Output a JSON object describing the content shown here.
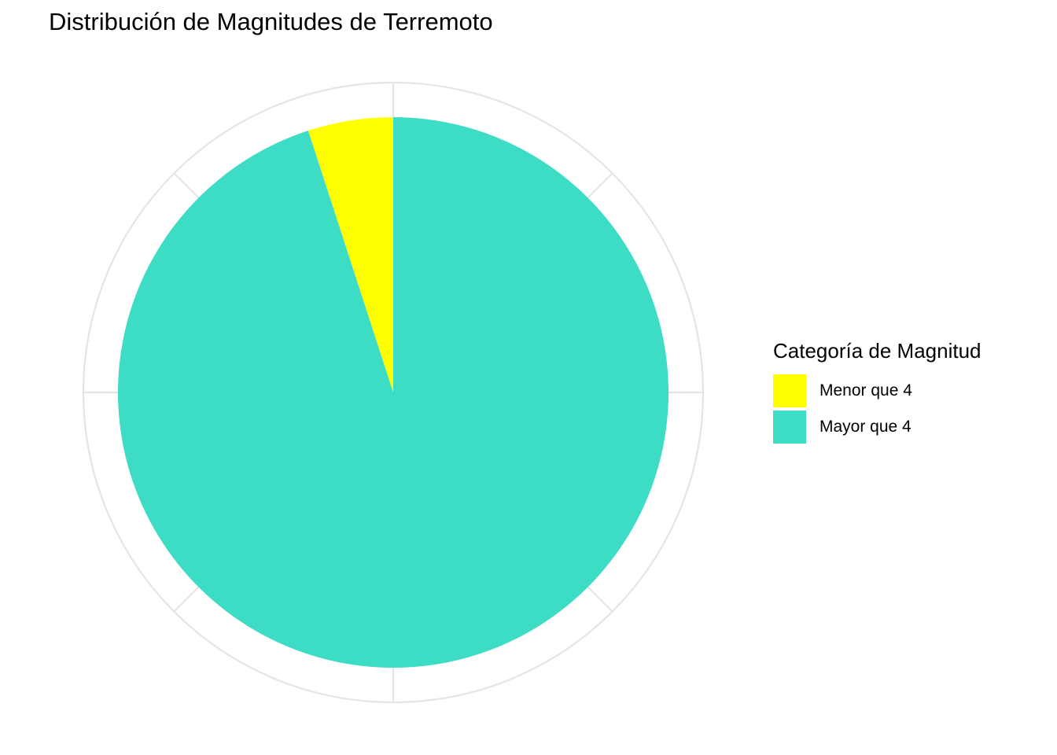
{
  "chart_data": {
    "type": "pie",
    "title": "Distribución de Magnitudes de Terremoto",
    "legend_title": "Categoría de Magnitud",
    "legend_position": "right",
    "grid": true,
    "slices": [
      {
        "label": "Menor que 4",
        "value": 0.05,
        "color": "#FFFF00"
      },
      {
        "label": "Mayor que 4",
        "value": 0.95,
        "color": "#3DDCC5"
      }
    ],
    "start_angle": "12 o'clock",
    "direction": "counter-clockwise"
  }
}
